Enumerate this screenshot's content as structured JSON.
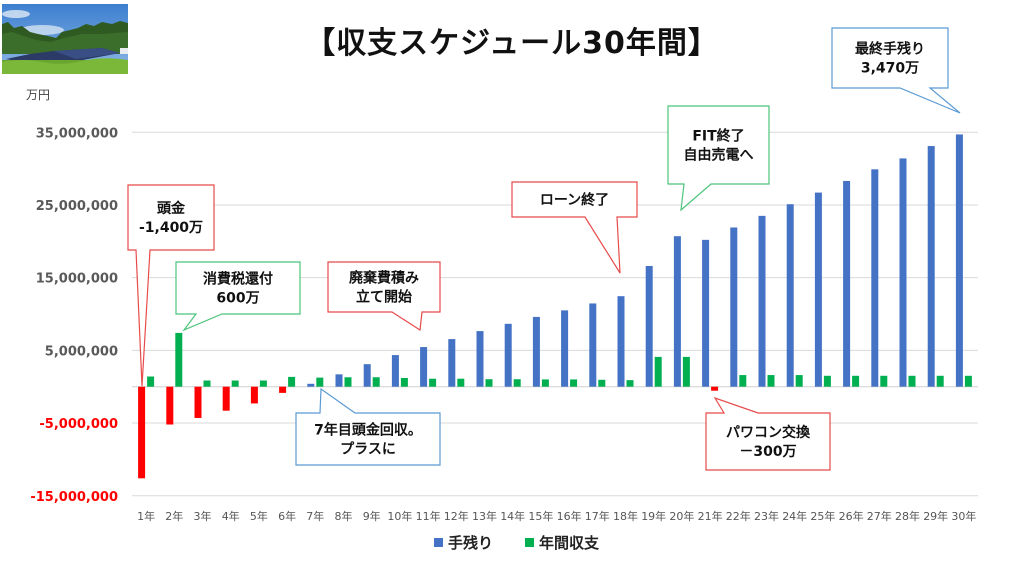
{
  "title": "【収支スケジュール30年間】",
  "unit_label": "万円",
  "photo": {
    "description": "ground-mounted solar panels in a field with forest and blue sky"
  },
  "colors": {
    "tenokori": "#4472C4",
    "annual": "#00B050",
    "negative": "#FF0000",
    "axis_label": "#595959",
    "axis_label_negative": "#FF0000",
    "grid": "#D9D9D9",
    "callout_red": "#E84B4B",
    "callout_green": "#4CC47A",
    "callout_blue": "#5B9BD5"
  },
  "chart_data": {
    "type": "bar",
    "title": "【収支スケジュール30年間】",
    "ylabel": "万円",
    "xlabel": "",
    "ylim": [
      -15000000,
      35000000
    ],
    "yticks": [
      {
        "value": 35000000,
        "label": "35,000,000"
      },
      {
        "value": 25000000,
        "label": "25,000,000"
      },
      {
        "value": 15000000,
        "label": "15,000,000"
      },
      {
        "value": 5000000,
        "label": "5,000,000"
      },
      {
        "value": -5000000,
        "label": "-5,000,000"
      },
      {
        "value": -15000000,
        "label": "-15,000,000"
      }
    ],
    "grid": true,
    "negative_color_note": "negative bars drawn in red",
    "categories": [
      "1年",
      "2年",
      "3年",
      "4年",
      "5年",
      "6年",
      "7年",
      "8年",
      "9年",
      "10年",
      "11年",
      "12年",
      "13年",
      "14年",
      "15年",
      "16年",
      "17年",
      "18年",
      "19年",
      "20年",
      "21年",
      "22年",
      "23年",
      "24年",
      "25年",
      "26年",
      "27年",
      "28年",
      "29年",
      "30年"
    ],
    "series": [
      {
        "name": "手残り",
        "values": [
          -12600000,
          -5200000,
          -4300000,
          -3300000,
          -2300000,
          -850000,
          400000,
          1700000,
          3100000,
          4350000,
          5450000,
          6550000,
          7650000,
          8650000,
          9600000,
          10500000,
          11450000,
          12450000,
          16600000,
          20700000,
          20200000,
          21900000,
          23500000,
          25100000,
          26700000,
          28300000,
          29900000,
          31400000,
          33100000,
          34700000
        ]
      },
      {
        "name": "年間収支",
        "values": [
          1400000,
          7400000,
          850000,
          850000,
          850000,
          1350000,
          1250000,
          1300000,
          1300000,
          1200000,
          1100000,
          1100000,
          1030000,
          1030000,
          1000000,
          1000000,
          950000,
          900000,
          4100000,
          4100000,
          -550000,
          1600000,
          1600000,
          1600000,
          1500000,
          1500000,
          1500000,
          1500000,
          1500000,
          1500000
        ]
      }
    ],
    "legend": {
      "position": "bottom",
      "entries": [
        "手残り",
        "年間収支"
      ]
    },
    "annotations": [
      {
        "id": "down-payment",
        "lines": [
          "頭金",
          "-1,400万"
        ],
        "target_year": "1年",
        "color": "red"
      },
      {
        "id": "tax-refund",
        "lines": [
          "消費税還付",
          "600万"
        ],
        "target_year": "2年",
        "color": "green"
      },
      {
        "id": "disposal-reserve",
        "lines": [
          "廃棄費積み",
          "立て開始"
        ],
        "target_year": "11年",
        "color": "red"
      },
      {
        "id": "payback",
        "lines": [
          "7年目頭金回収。",
          "プラスに"
        ],
        "target_year": "7年",
        "color": "blue"
      },
      {
        "id": "loan-end",
        "lines": [
          "ローン終了"
        ],
        "target_year": "18年",
        "color": "red"
      },
      {
        "id": "fit-end",
        "lines": [
          "FIT終了",
          "自由売電へ"
        ],
        "target_year": "20年",
        "color": "green"
      },
      {
        "id": "inverter-replace",
        "lines": [
          "パワコン交換",
          "－300万"
        ],
        "target_year": "21年",
        "color": "red"
      },
      {
        "id": "final-balance",
        "lines": [
          "最終手残り",
          "3,470万"
        ],
        "target_year": "30年",
        "color": "blue"
      }
    ]
  }
}
